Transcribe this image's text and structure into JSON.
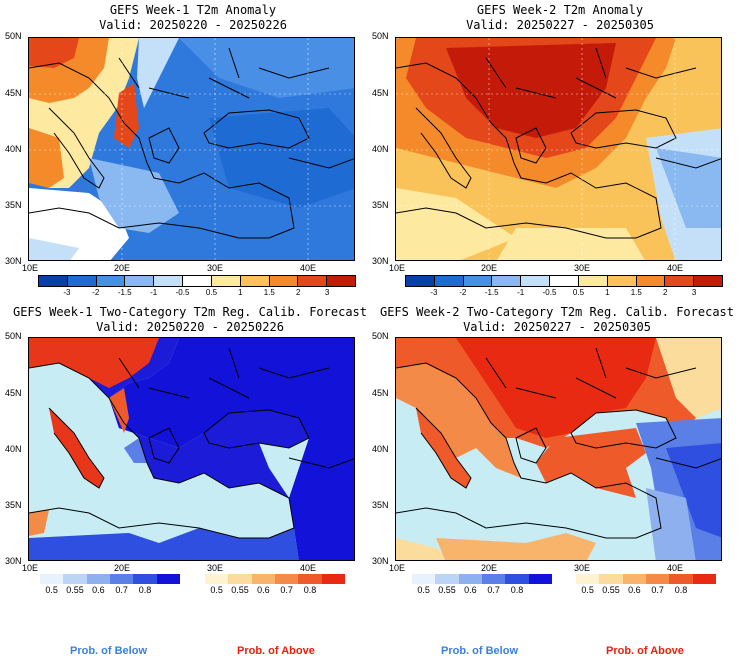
{
  "panels": [
    {
      "title": "GEFS Week-1 T2m Anomaly",
      "valid": "Valid: 20250220 - 20250226"
    },
    {
      "title": "GEFS Week-2 T2m Anomaly",
      "valid": "Valid: 20250227 - 20250305"
    },
    {
      "title": "GEFS Week-1 Two-Category T2m Reg. Calib. Forecast",
      "valid": "Valid: 20250220 - 20250226"
    },
    {
      "title": "GEFS Week-2 Two-Category T2m Reg. Calib. Forecast",
      "valid": "Valid: 20250227 - 20250305"
    }
  ],
  "axes": {
    "lat_labels": [
      "50N",
      "45N",
      "40N",
      "35N",
      "30N"
    ],
    "lon_labels": [
      "10E",
      "20E",
      "30E",
      "40E"
    ]
  },
  "anomaly_colorbar": {
    "labels": [
      "-3",
      "-2",
      "-1.5",
      "-1",
      "-0.5",
      "0.5",
      "1",
      "1.5",
      "2",
      "3"
    ],
    "colors": [
      "#0b3fa8",
      "#1f6bd4",
      "#4a8fe6",
      "#8ab8f0",
      "#c4dff8",
      "#ffffff",
      "#fde9a0",
      "#f9c35a",
      "#f48a2a",
      "#e3471a",
      "#c41a0a"
    ]
  },
  "below_colorbar": {
    "labels": [
      "0.5",
      "0.55",
      "0.6",
      "0.7",
      "0.8"
    ],
    "colors": [
      "#e8f2fc",
      "#bcd4f6",
      "#8fb0ee",
      "#5a7fe6",
      "#2f4fe0",
      "#1212d8"
    ],
    "caption": "Prob. of Below",
    "caption_color": "#3a7fe0"
  },
  "above_colorbar": {
    "labels": [
      "0.5",
      "0.55",
      "0.6",
      "0.7",
      "0.8"
    ],
    "colors": [
      "#fdf3d0",
      "#fcdc9c",
      "#f8b46a",
      "#f48a48",
      "#ef5a2a",
      "#e82a12"
    ],
    "caption": "Prob. of Above",
    "caption_color": "#e8200e"
  },
  "palette": {
    "sea": "#c8ecf4",
    "coast": "#000000"
  }
}
